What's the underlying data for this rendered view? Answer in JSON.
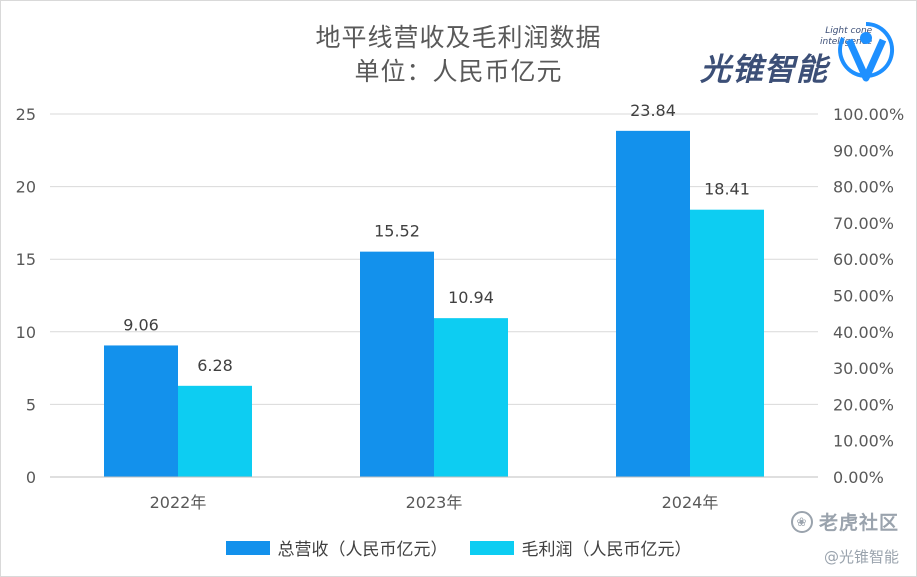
{
  "logo": {
    "text": "光锥智能",
    "sub_line1": "Light cone",
    "sub_line2": "intelligence"
  },
  "watermark": {
    "line1": "老虎社区",
    "line2": "@光锥智能"
  },
  "chart_data": {
    "type": "bar",
    "title": "地平线营收及毛利润数据",
    "subtitle": "单位：人民币亿元",
    "categories": [
      "2022年",
      "2023年",
      "2024年"
    ],
    "series": [
      {
        "name": "总营收（人民币亿元）",
        "values": [
          9.06,
          15.52,
          23.84
        ],
        "color": "#1391ec"
      },
      {
        "name": "毛利润（人民币亿元）",
        "values": [
          6.28,
          10.94,
          18.41
        ],
        "color": "#0dcdf2"
      }
    ],
    "data_labels": [
      [
        "9.06",
        "15.52",
        "23.84"
      ],
      [
        "6.28",
        "10.94",
        "18.41"
      ]
    ],
    "ylim": [
      0,
      25
    ],
    "yticks": [
      "0",
      "5",
      "10",
      "15",
      "20",
      "25"
    ],
    "y2lim": [
      0,
      100
    ],
    "y2ticks": [
      "0.00%",
      "10.00%",
      "20.00%",
      "30.00%",
      "40.00%",
      "50.00%",
      "60.00%",
      "70.00%",
      "80.00%",
      "90.00%",
      "100.00%"
    ],
    "grid": true,
    "legend": "bottom"
  }
}
